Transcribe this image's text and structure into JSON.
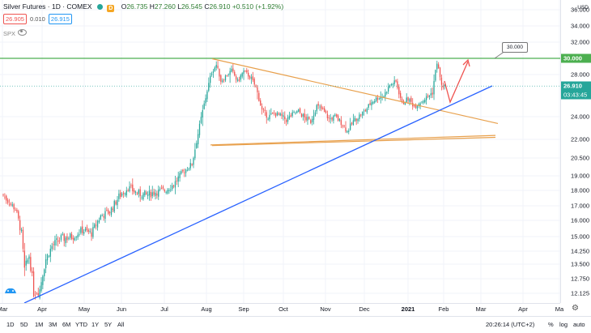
{
  "legend": {
    "title": "Silver Futures · 1D · COMEX",
    "open_label": "O",
    "open": "26.735",
    "high_label": "H",
    "high": "27.260",
    "low_label": "L",
    "low": "26.545",
    "close_label": "C",
    "close": "26.910",
    "change": "+0.510 (+1.92%)",
    "badge": "D"
  },
  "quote": {
    "sell": "26.905",
    "spread": "0.010",
    "buy": "26.915"
  },
  "compare": {
    "symbol": "SPX"
  },
  "price_axis": {
    "currency": "USD",
    "labels": [
      "36.000",
      "34.000",
      "32.000",
      "28.000",
      "24.000",
      "22.000",
      "20.500",
      "19.000",
      "18.000",
      "17.000",
      "16.000",
      "15.000",
      "14.250",
      "13.500",
      "12.750",
      "12.125"
    ],
    "tags": {
      "level": "30.000",
      "last": "26.910",
      "countdown": "03:43:45"
    },
    "colors": {
      "level": "#4caf50",
      "last": "#26a69a",
      "countdown": "#26a69a"
    }
  },
  "callout": {
    "text": "30.000"
  },
  "time_axis": {
    "labels": [
      "Mar",
      "Apr",
      "May",
      "Jun",
      "Jul",
      "Aug",
      "Sep",
      "Oct",
      "Nov",
      "Dec",
      "2021",
      "Feb",
      "Mar",
      "Apr",
      "Ma"
    ]
  },
  "bottom_bar": {
    "ranges": [
      "1D",
      "5D",
      "1M",
      "3M",
      "6M",
      "YTD",
      "1Y",
      "5Y",
      "All"
    ],
    "clock": "20:26:14 (UTC+2)",
    "percent": "%",
    "log": "log",
    "auto": "auto"
  },
  "colors": {
    "up": "#26a69a",
    "down": "#ef5350",
    "triangle": "#e8a04c",
    "trend": "#2962ff",
    "resistance": "#4caf50",
    "arrow": "#ef5350"
  },
  "chart_data": {
    "type": "candlestick",
    "start": "2020-02-26",
    "y_range": [
      12,
      36
    ],
    "resistance": 30.0,
    "candles": []
  }
}
